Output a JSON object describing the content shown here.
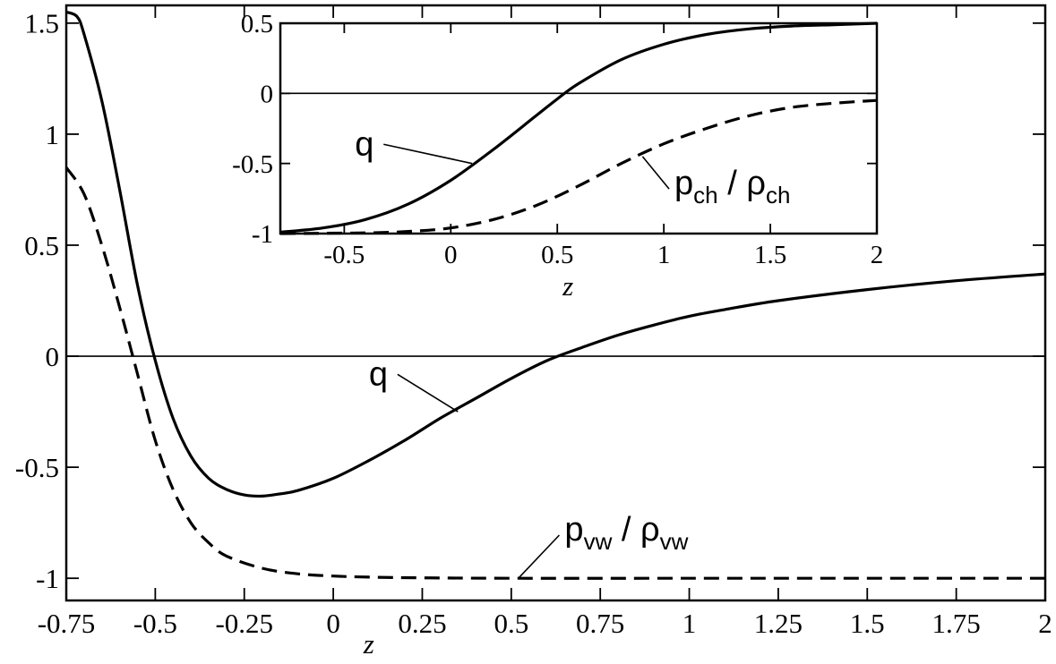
{
  "chart_data": [
    {
      "type": "line",
      "panel": "main",
      "xlabel": "z",
      "ylabel": "",
      "xlim": [
        -0.75,
        2
      ],
      "ylim": [
        -1.1,
        1.58
      ],
      "xticks": [
        -0.75,
        -0.5,
        -0.25,
        0,
        0.25,
        0.5,
        0.75,
        1,
        1.25,
        1.5,
        1.75,
        2
      ],
      "xtick_labels": [
        "-0.75",
        "-0.5",
        "-0.25",
        "0",
        "0.25",
        "0.5",
        "0.75",
        "1",
        "1.25",
        "1.5",
        "1.75",
        "2"
      ],
      "yticks": [
        -1,
        -0.5,
        0,
        0.5,
        1,
        1.5
      ],
      "ytick_labels": [
        "-1",
        "-0.5",
        "0",
        "0.5",
        "1",
        "1.5"
      ],
      "zero_line": 0,
      "series": [
        {
          "name": "q",
          "style": "solid",
          "x": [
            -0.75,
            -0.72,
            -0.7,
            -0.65,
            -0.6,
            -0.55,
            -0.5,
            -0.45,
            -0.4,
            -0.35,
            -0.3,
            -0.25,
            -0.2,
            -0.15,
            -0.1,
            0,
            0.1,
            0.2,
            0.3,
            0.4,
            0.5,
            0.6,
            0.7,
            0.8,
            0.9,
            1.0,
            1.1,
            1.25,
            1.5,
            1.75,
            2.0
          ],
          "y": [
            1.55,
            1.53,
            1.45,
            1.15,
            0.75,
            0.32,
            -0.02,
            -0.28,
            -0.45,
            -0.55,
            -0.6,
            -0.625,
            -0.63,
            -0.62,
            -0.605,
            -0.55,
            -0.47,
            -0.38,
            -0.28,
            -0.19,
            -0.1,
            -0.02,
            0.04,
            0.095,
            0.14,
            0.18,
            0.21,
            0.25,
            0.3,
            0.34,
            0.37
          ]
        },
        {
          "name": "p_vw / ρ_vw",
          "style": "dashed",
          "x": [
            -0.75,
            -0.7,
            -0.65,
            -0.6,
            -0.55,
            -0.5,
            -0.45,
            -0.4,
            -0.35,
            -0.3,
            -0.2,
            -0.1,
            0,
            0.1,
            0.25,
            0.5,
            1.0,
            1.5,
            2.0
          ],
          "y": [
            0.85,
            0.73,
            0.5,
            0.22,
            -0.08,
            -0.38,
            -0.6,
            -0.75,
            -0.84,
            -0.9,
            -0.955,
            -0.98,
            -0.99,
            -0.995,
            -0.998,
            -1.0,
            -1.0,
            -1.0,
            -1.0
          ]
        }
      ],
      "annotations": [
        {
          "text": "q",
          "series": "q",
          "point": [
            0.35,
            -0.25
          ],
          "label_at": [
            0.1,
            -0.13
          ]
        },
        {
          "text_main": "p",
          "sub1": "vw",
          "slash": " / ",
          "text_rho": "ρ",
          "sub2": "vw",
          "series": "p_vw / ρ_vw",
          "point": [
            0.52,
            -1.0
          ],
          "label_at": [
            0.65,
            -0.83
          ]
        }
      ]
    },
    {
      "type": "line",
      "panel": "inset",
      "xlabel": "z",
      "ylabel": "",
      "xlim": [
        -0.8,
        2
      ],
      "ylim": [
        -1,
        0.5
      ],
      "xticks": [
        -0.5,
        0,
        0.5,
        1,
        1.5,
        2
      ],
      "xtick_labels": [
        "-0.5",
        "0",
        "0.5",
        "1",
        "1.5",
        "2"
      ],
      "yticks": [
        -1,
        -0.5,
        0,
        0.5
      ],
      "ytick_labels": [
        "-1",
        "-0.5",
        "0",
        "0.5"
      ],
      "zero_line": 0,
      "series": [
        {
          "name": "q",
          "style": "solid",
          "x": [
            -0.8,
            -0.6,
            -0.4,
            -0.2,
            0,
            0.2,
            0.4,
            0.5,
            0.6,
            0.8,
            1.0,
            1.2,
            1.4,
            1.6,
            1.8,
            2.0
          ],
          "y": [
            -0.99,
            -0.96,
            -0.9,
            -0.79,
            -0.62,
            -0.4,
            -0.16,
            -0.04,
            0.07,
            0.24,
            0.35,
            0.42,
            0.46,
            0.48,
            0.49,
            0.5
          ]
        },
        {
          "name": "p_ch / ρ_ch",
          "style": "dashed",
          "x": [
            -0.8,
            -0.4,
            -0.2,
            0,
            0.2,
            0.4,
            0.6,
            0.8,
            1.0,
            1.2,
            1.4,
            1.6,
            1.8,
            2.0
          ],
          "y": [
            -1.0,
            -0.995,
            -0.985,
            -0.96,
            -0.9,
            -0.8,
            -0.66,
            -0.5,
            -0.36,
            -0.25,
            -0.16,
            -0.1,
            -0.07,
            -0.05
          ]
        }
      ],
      "annotations": [
        {
          "text": "q",
          "series": "q",
          "point": [
            0.1,
            -0.5
          ],
          "label_at": [
            -0.45,
            -0.44
          ]
        },
        {
          "text_main": "p",
          "sub1": "ch",
          "slash": " / ",
          "text_rho": "ρ",
          "sub2": "ch",
          "series": "p_ch / ρ_ch",
          "point": [
            0.9,
            -0.45
          ],
          "label_at": [
            1.05,
            -0.72
          ]
        }
      ]
    }
  ]
}
